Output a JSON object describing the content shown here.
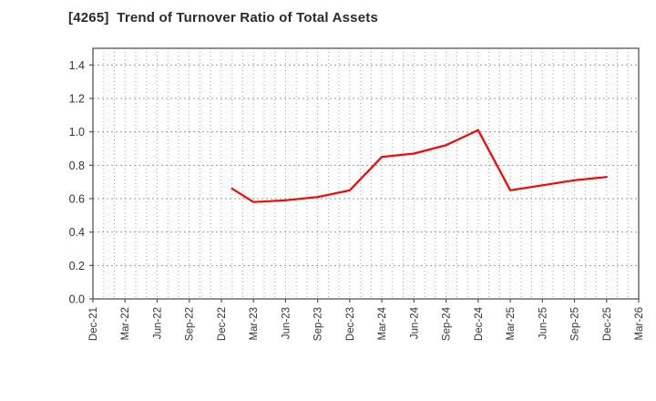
{
  "header": {
    "title": "[4265]  Trend of Turnover Ratio of Total Assets"
  },
  "chart_data": {
    "type": "line",
    "title": "[4265]  Trend of Turnover Ratio of Total Assets",
    "legend": "none",
    "x_axis": {
      "tick_labels": [
        "Dec-21",
        "Mar-22",
        "Jun-22",
        "Sep-22",
        "Dec-22",
        "Mar-23",
        "Jun-23",
        "Sep-23",
        "Dec-23",
        "Mar-24",
        "Jun-24",
        "Sep-24",
        "Dec-24",
        "Mar-25",
        "Jun-25",
        "Sep-25",
        "Dec-25",
        "Mar-26"
      ],
      "tick_months_since_start": [
        0,
        3,
        6,
        9,
        12,
        15,
        18,
        21,
        24,
        27,
        30,
        33,
        36,
        39,
        42,
        45,
        48,
        51
      ],
      "range_months": [
        0,
        51
      ],
      "minor_grid_interval_months": 1,
      "label_rotation_deg": -90
    },
    "y_axis": {
      "tick_labels": [
        "0.0",
        "0.2",
        "0.4",
        "0.6",
        "0.8",
        "1.0",
        "1.2",
        "1.4"
      ],
      "tick_values": [
        0.0,
        0.2,
        0.4,
        0.6,
        0.8,
        1.0,
        1.2,
        1.4
      ],
      "range": [
        0,
        1.5
      ],
      "grid": true
    },
    "series": [
      {
        "name": "Turnover Ratio of Total Assets",
        "color": "#ff0000",
        "line_width": 2.2,
        "x_months_since_start": [
          13,
          15,
          18,
          21,
          24,
          27,
          30,
          33,
          36,
          39,
          42,
          45,
          48
        ],
        "values": [
          0.66,
          0.58,
          0.59,
          0.61,
          0.65,
          0.85,
          0.87,
          0.92,
          1.01,
          0.65,
          0.68,
          0.71,
          0.73
        ]
      }
    ],
    "colors": {
      "grid": "#aaaaaa",
      "frame": "#555555",
      "tick_labels": "#333333",
      "title": "#2b2b2b",
      "background": "#ffffff"
    }
  }
}
